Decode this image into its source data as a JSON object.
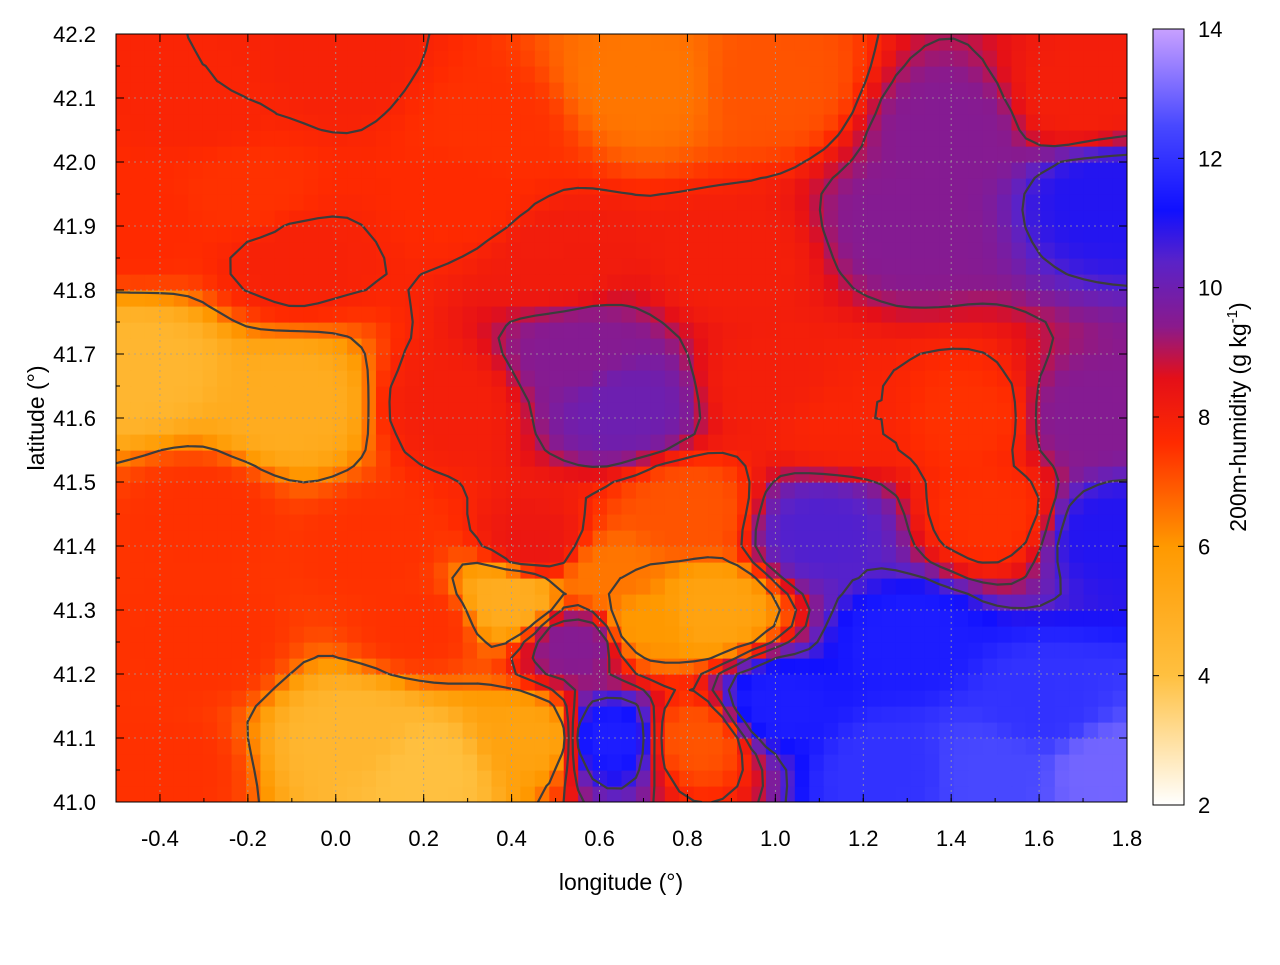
{
  "chart_data": {
    "type": "heatmap",
    "title": "",
    "xlabel": "longitude (°)",
    "ylabel": "latitude (°)",
    "xlim": [
      -0.5,
      1.8
    ],
    "ylim": [
      41.0,
      42.2
    ],
    "xticks": [
      -0.4,
      -0.2,
      0.0,
      0.2,
      0.4,
      0.6,
      0.8,
      1.0,
      1.2,
      1.4,
      1.6,
      1.8
    ],
    "xtick_labels": [
      "-0.4",
      "-0.2",
      "0.0",
      "0.2",
      "0.4",
      "0.6",
      "0.8",
      "1.0",
      "1.2",
      "1.4",
      "1.6",
      "1.8"
    ],
    "yticks": [
      41.0,
      41.1,
      41.2,
      41.3,
      41.4,
      41.5,
      41.6,
      41.7,
      41.8,
      41.9,
      42.0,
      42.1,
      42.2
    ],
    "ytick_labels": [
      "41.0",
      "41.1",
      "41.2",
      "41.3",
      "41.4",
      "41.5",
      "41.6",
      "41.7",
      "41.8",
      "41.9",
      "42.0",
      "42.1",
      "42.2"
    ],
    "grid": true,
    "colorbar": {
      "label_prefix": "200m-humidity (g kg",
      "label_sup": "-1",
      "label_suffix": ")",
      "range": [
        2,
        14
      ],
      "ticks": [
        2,
        4,
        6,
        8,
        10,
        12,
        14
      ],
      "tick_labels": [
        "2",
        "4",
        "6",
        "8",
        "10",
        "12",
        "14"
      ],
      "palette": [
        {
          "v": 2,
          "color": "#ffffff"
        },
        {
          "v": 4,
          "color": "#ffc040"
        },
        {
          "v": 6,
          "color": "#ff9900"
        },
        {
          "v": 7.6,
          "color": "#ff2a00"
        },
        {
          "v": 8.6,
          "color": "#e40f18"
        },
        {
          "v": 9.4,
          "color": "#8a1a8c"
        },
        {
          "v": 10.4,
          "color": "#5a22c8"
        },
        {
          "v": 11.2,
          "color": "#1010ff"
        },
        {
          "v": 12.5,
          "color": "#4848ff"
        },
        {
          "v": 14,
          "color": "#c8a0ff"
        }
      ]
    },
    "field_anchors": [
      {
        "lon": -0.3,
        "lat": 42.1,
        "q": 7.8
      },
      {
        "lon": 0.0,
        "lat": 42.15,
        "q": 7.9
      },
      {
        "lon": 0.35,
        "lat": 42.05,
        "q": 7.5
      },
      {
        "lon": 0.7,
        "lat": 42.12,
        "q": 6.5
      },
      {
        "lon": 1.0,
        "lat": 42.12,
        "q": 7.0
      },
      {
        "lon": 1.4,
        "lat": 42.05,
        "q": 9.5
      },
      {
        "lon": 1.7,
        "lat": 42.1,
        "q": 8.0
      },
      {
        "lon": 1.75,
        "lat": 41.95,
        "q": 11.0
      },
      {
        "lon": 1.3,
        "lat": 41.9,
        "q": 9.5
      },
      {
        "lon": 0.9,
        "lat": 41.85,
        "q": 8.0
      },
      {
        "lon": 0.5,
        "lat": 41.85,
        "q": 8.1
      },
      {
        "lon": -0.1,
        "lat": 41.85,
        "q": 7.9
      },
      {
        "lon": -0.45,
        "lat": 41.68,
        "q": 4.5
      },
      {
        "lon": -0.1,
        "lat": 41.62,
        "q": 5.0
      },
      {
        "lon": 0.25,
        "lat": 41.62,
        "q": 8.0
      },
      {
        "lon": 0.65,
        "lat": 41.62,
        "q": 10.0
      },
      {
        "lon": 0.55,
        "lat": 41.7,
        "q": 9.5
      },
      {
        "lon": 1.0,
        "lat": 41.65,
        "q": 8.0
      },
      {
        "lon": 1.45,
        "lat": 41.6,
        "q": 7.5
      },
      {
        "lon": 1.7,
        "lat": 41.6,
        "q": 9.5
      },
      {
        "lon": -0.3,
        "lat": 41.45,
        "q": 7.5
      },
      {
        "lon": 0.1,
        "lat": 41.4,
        "q": 7.5
      },
      {
        "lon": 0.45,
        "lat": 41.4,
        "q": 8.3
      },
      {
        "lon": 0.8,
        "lat": 41.45,
        "q": 7.0
      },
      {
        "lon": 1.1,
        "lat": 41.42,
        "q": 10.5
      },
      {
        "lon": 1.5,
        "lat": 41.45,
        "q": 7.5
      },
      {
        "lon": 1.75,
        "lat": 41.42,
        "q": 11.0
      },
      {
        "lon": 0.85,
        "lat": 41.3,
        "q": 5.5
      },
      {
        "lon": 0.7,
        "lat": 41.28,
        "q": 6.0
      },
      {
        "lon": 0.55,
        "lat": 41.25,
        "q": 9.5
      },
      {
        "lon": 0.2,
        "lat": 41.28,
        "q": 7.5
      },
      {
        "lon": -0.3,
        "lat": 41.25,
        "q": 7.5
      },
      {
        "lon": 0.05,
        "lat": 41.1,
        "q": 4.5
      },
      {
        "lon": 0.2,
        "lat": 41.05,
        "q": 4.0
      },
      {
        "lon": 0.45,
        "lat": 41.1,
        "q": 5.5
      },
      {
        "lon": 0.62,
        "lat": 41.1,
        "q": 11.5
      },
      {
        "lon": 0.82,
        "lat": 41.1,
        "q": 7.0
      },
      {
        "lon": -0.4,
        "lat": 41.05,
        "q": 7.5
      },
      {
        "lon": 1.0,
        "lat": 41.15,
        "q": 11.5
      },
      {
        "lon": 1.3,
        "lat": 41.25,
        "q": 11.5
      },
      {
        "lon": 1.6,
        "lat": 41.15,
        "q": 12.0
      },
      {
        "lon": 1.5,
        "lat": 41.05,
        "q": 12.5
      },
      {
        "lon": 1.75,
        "lat": 41.05,
        "q": 13.0
      },
      {
        "lon": 1.25,
        "lat": 41.05,
        "q": 12.0
      },
      {
        "lon": 0.62,
        "lat": 41.35,
        "q": 6.5
      },
      {
        "lon": 0.3,
        "lat": 41.95,
        "q": 7.6
      },
      {
        "lon": 0.4,
        "lat": 41.32,
        "q": 5.0
      },
      {
        "lon": 1.15,
        "lat": 41.6,
        "q": 7.8
      },
      {
        "lon": -0.2,
        "lat": 41.95,
        "q": 7.5
      },
      {
        "lon": -0.45,
        "lat": 41.9,
        "q": 7.6
      }
    ]
  }
}
